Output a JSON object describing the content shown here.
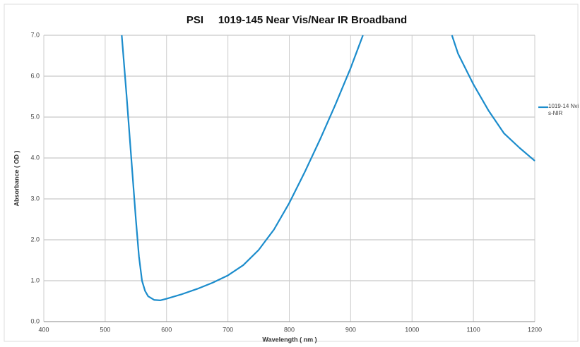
{
  "chart_data": {
    "type": "line",
    "title": "PSI     1019-145 Near Vis/Near IR Broadband",
    "xlabel": "Wavelength ( nm )",
    "ylabel": "Absorbance ( OD )",
    "x": [
      527,
      535,
      540,
      545,
      550,
      555,
      560,
      565,
      570,
      580,
      590,
      600,
      625,
      650,
      675,
      700,
      725,
      750,
      775,
      800,
      825,
      850,
      875,
      900,
      920,
      990,
      1065,
      1075,
      1100,
      1125,
      1150,
      1175,
      1200
    ],
    "series": [
      {
        "name": "1019-14 Nvis-NIR",
        "color": "#1b8ccc",
        "values": [
          7.0,
          5.5,
          4.5,
          3.5,
          2.5,
          1.6,
          1.0,
          0.75,
          0.62,
          0.53,
          0.52,
          0.56,
          0.67,
          0.8,
          0.95,
          1.13,
          1.38,
          1.75,
          2.25,
          2.9,
          3.65,
          4.45,
          5.3,
          6.2,
          7.0,
          null,
          7.0,
          6.55,
          5.8,
          5.15,
          4.6,
          4.25,
          3.93
        ]
      }
    ],
    "xlim": [
      400,
      1200
    ],
    "xticks": [
      400,
      500,
      600,
      700,
      800,
      900,
      1000,
      1100,
      1200
    ],
    "ylim": [
      0,
      7
    ],
    "yticks": [
      {
        "value": 0,
        "label": "0.0"
      },
      {
        "value": 1,
        "label": "1.0"
      },
      {
        "value": 2,
        "label": "2.0"
      },
      {
        "value": 3,
        "label": "3.0"
      },
      {
        "value": 4,
        "label": "4.0"
      },
      {
        "value": 5,
        "label": "5.0"
      },
      {
        "value": 6,
        "label": "6.0"
      },
      {
        "value": 7,
        "label": "7.0"
      }
    ],
    "grid": true,
    "legend": "right"
  }
}
